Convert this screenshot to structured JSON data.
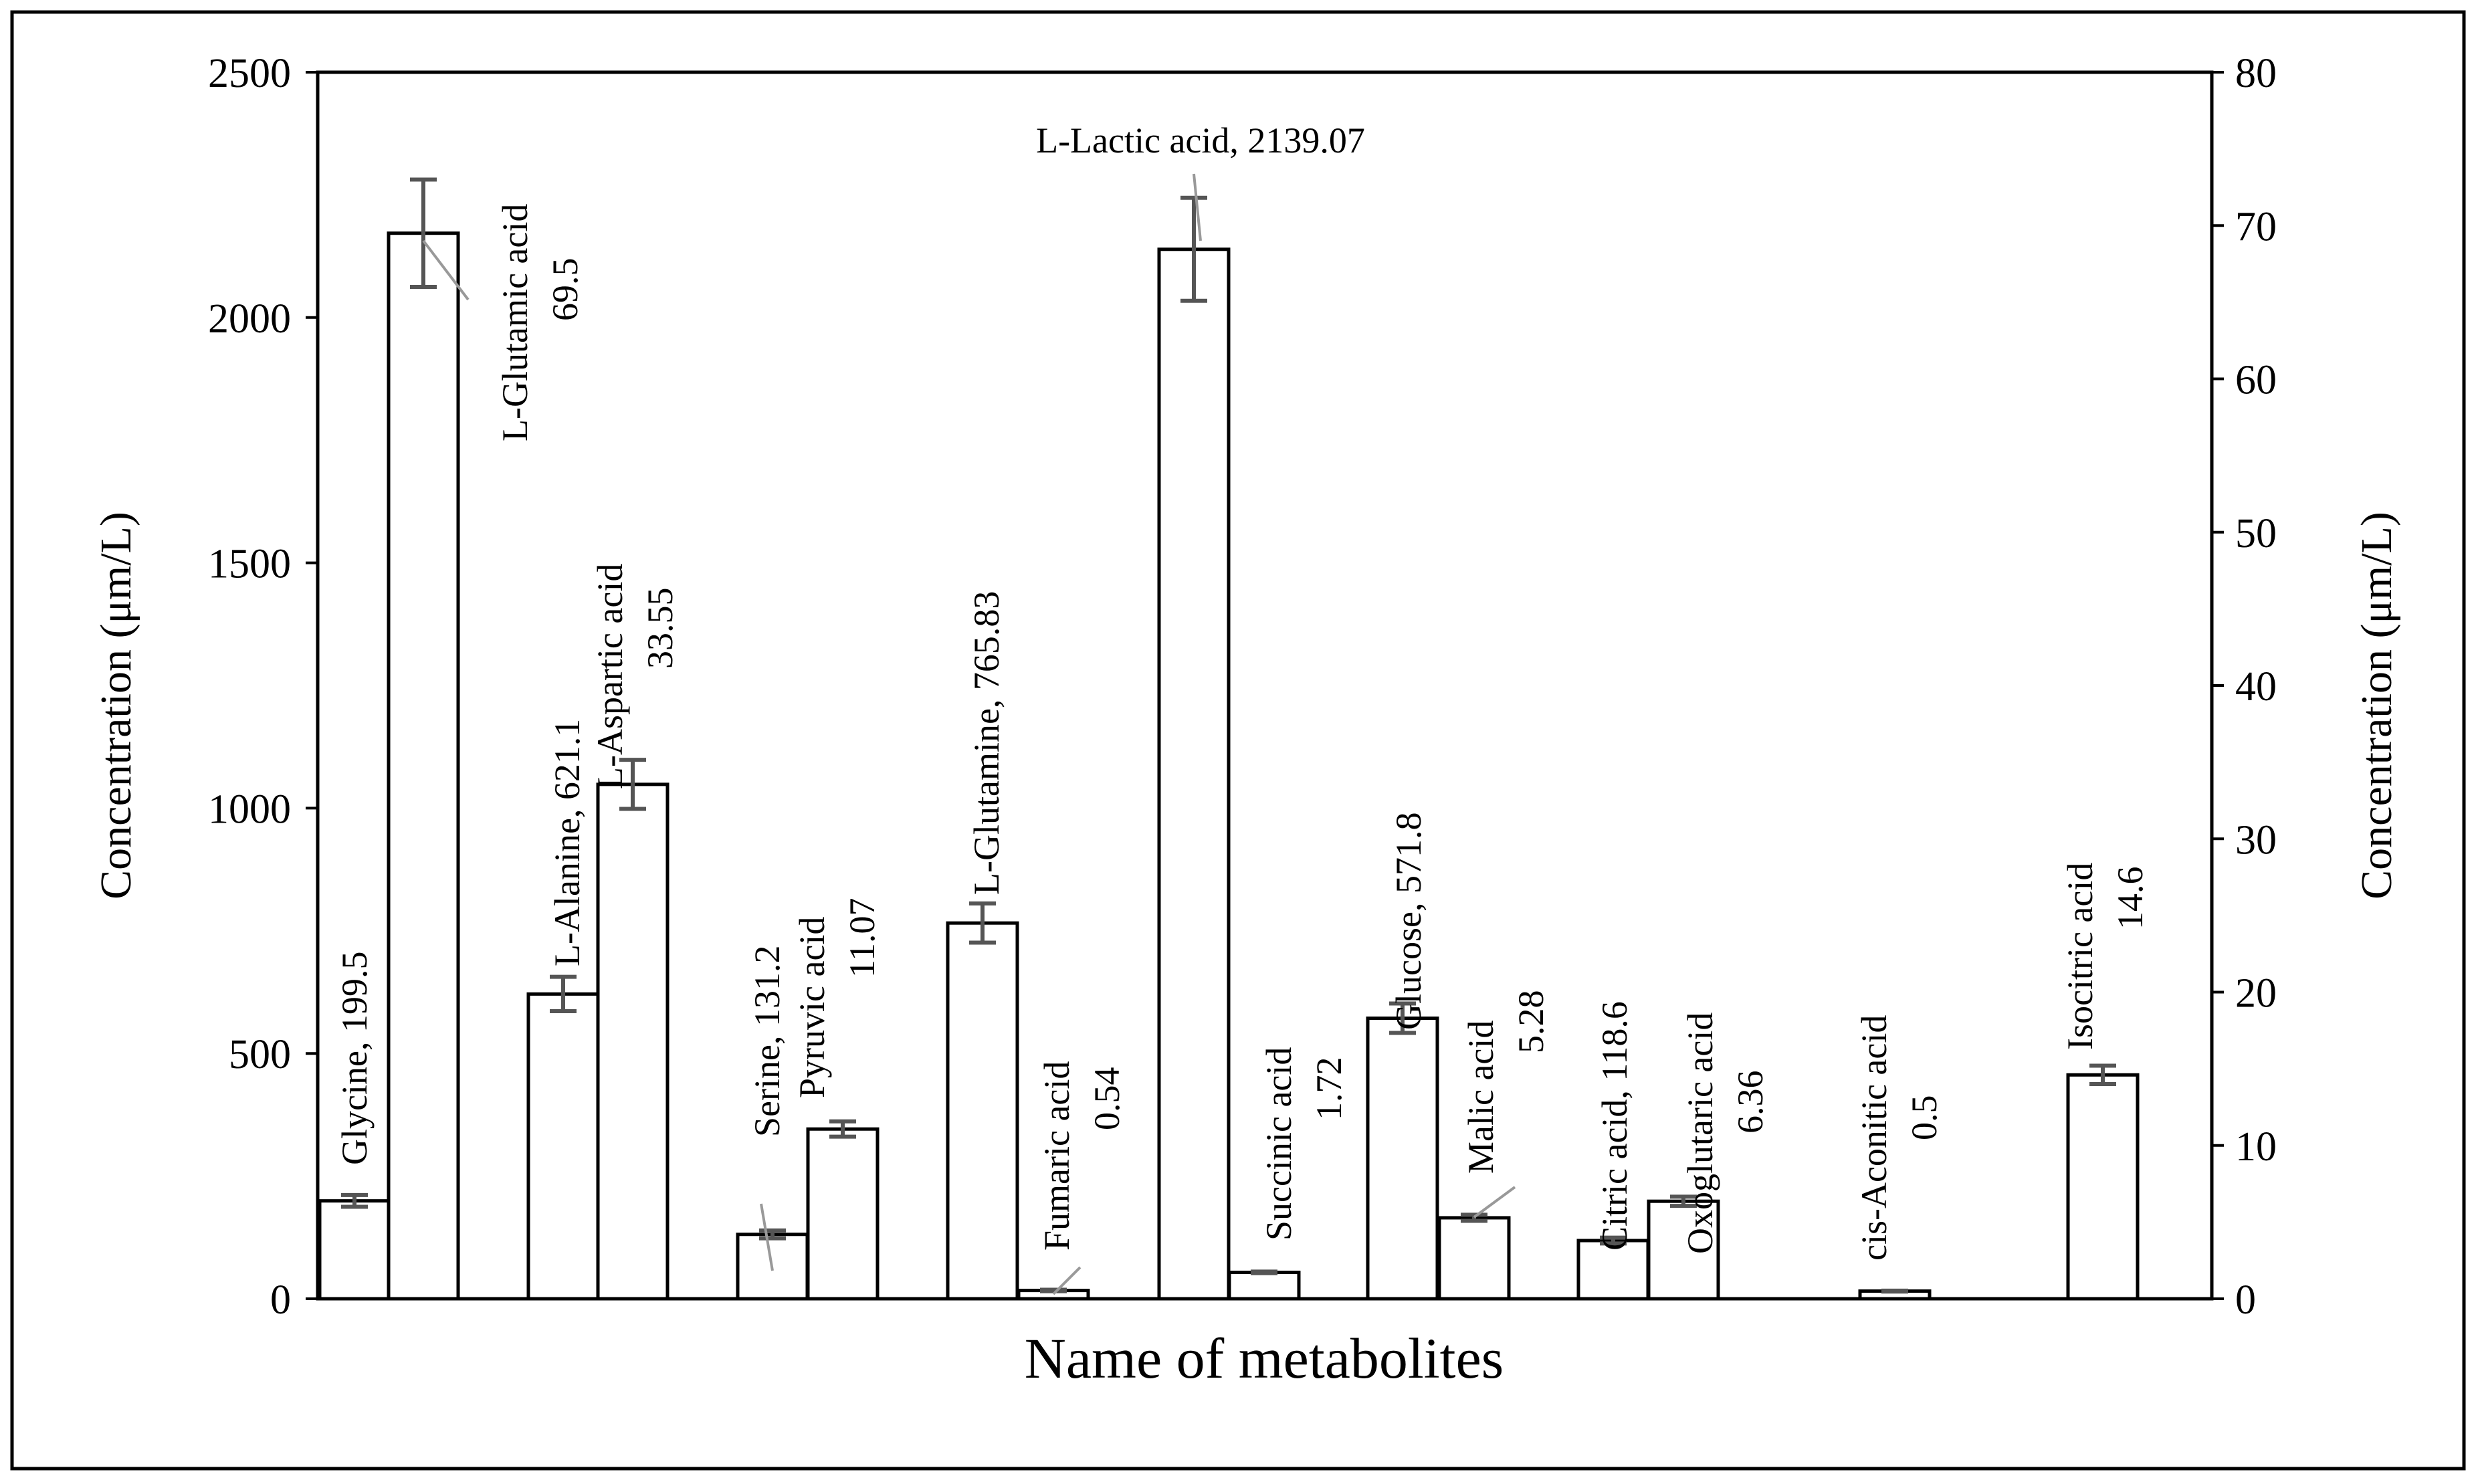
{
  "chart_data": {
    "type": "bar",
    "title": "",
    "xlabel": "Name of metabolites",
    "ylabel_left": "Concentration (μm/L)",
    "ylabel_right": "Concentration (μm/L)",
    "ylim_left": [
      0,
      2500
    ],
    "ylim_right": [
      0,
      80
    ],
    "yticks_left": [
      "0",
      "500",
      "1000",
      "1500",
      "2000",
      "2500"
    ],
    "yticks_right": [
      "0",
      "10",
      "20",
      "30",
      "40",
      "50",
      "60",
      "70",
      "80"
    ],
    "grid": false,
    "legend": "none",
    "bars": [
      {
        "name": "Glycine",
        "axis": "left",
        "value": 199.5,
        "error": 12,
        "label_lines": [
          "Glycine, 199.5"
        ]
      },
      {
        "name": "L-Glutamic acid",
        "axis": "right",
        "value": 69.5,
        "error": 3.5,
        "label_lines": [
          "L-Glutamic acid",
          "69.5"
        ]
      },
      {
        "name": "L-Alanine",
        "axis": "left",
        "value": 621.1,
        "error": 35,
        "label_lines": [
          "L-Alanine, 621.1"
        ]
      },
      {
        "name": "L-Aspartic acid",
        "axis": "right",
        "value": 33.55,
        "error": 1.6,
        "label_lines": [
          "L-Aspartic acid",
          "33.55"
        ]
      },
      {
        "name": "Serine",
        "axis": "left",
        "value": 131.2,
        "error": 8,
        "label_lines": [
          "Serine, 131.2"
        ]
      },
      {
        "name": "Pyruvic acid",
        "axis": "right",
        "value": 11.07,
        "error": 0.5,
        "label_lines": [
          "Pyruvic acid",
          "11.07"
        ]
      },
      {
        "name": "L-Glutamine",
        "axis": "left",
        "value": 765.83,
        "error": 40,
        "label_lines": [
          "L-Glutamine, 765.83"
        ]
      },
      {
        "name": "Fumaric acid",
        "axis": "right",
        "value": 0.54,
        "error": 0.05,
        "label_lines": [
          "Fumaric acid",
          "0.54"
        ]
      },
      {
        "name": "L-Lactic acid",
        "axis": "left",
        "value": 2139.07,
        "error": 105,
        "label_lines": [
          "L-Lactic acid, 2139.07"
        ]
      },
      {
        "name": "Succinic acid",
        "axis": "right",
        "value": 1.72,
        "error": 0.05,
        "label_lines": [
          "Succinic acid",
          "1.72"
        ]
      },
      {
        "name": "Glucose",
        "axis": "left",
        "value": 571.8,
        "error": 30,
        "label_lines": [
          "Glucose, 571.8"
        ]
      },
      {
        "name": "Malic acid",
        "axis": "right",
        "value": 5.28,
        "error": 0.2,
        "label_lines": [
          "Malic acid",
          "5.28"
        ]
      },
      {
        "name": "Citric acid",
        "axis": "left",
        "value": 118.6,
        "error": 6,
        "label_lines": [
          "Citric acid, 118.6"
        ]
      },
      {
        "name": "Oxoglutaric acid",
        "axis": "right",
        "value": 6.36,
        "error": 0.3,
        "label_lines": [
          "Oxoglutaric acid",
          "6.36"
        ]
      },
      {
        "name": "cis-Aconitic acid",
        "axis": "right",
        "value": 0.5,
        "error": 0.03,
        "label_lines": [
          "cis-Aconitic acid",
          "0.5"
        ]
      },
      {
        "name": "Isocitric acid",
        "axis": "right",
        "value": 14.6,
        "error": 0.6,
        "label_lines": [
          "Isocitric acid",
          "14.6"
        ]
      }
    ]
  }
}
